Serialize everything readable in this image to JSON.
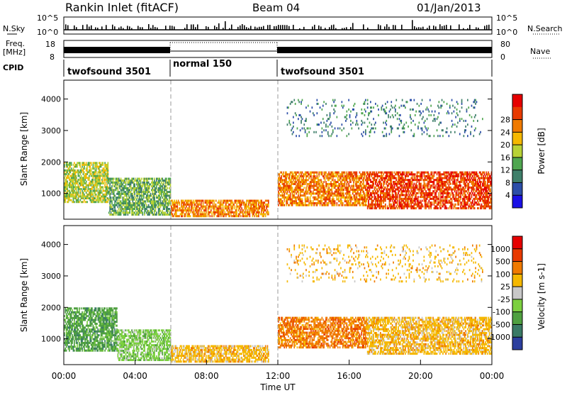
{
  "header": {
    "station": "Rankin Inlet (fitACF)",
    "beam": "Beam 04",
    "date": "01/Jan/2013"
  },
  "summary_panels": {
    "nsky_label": "N.Sky",
    "nsky_ticks": [
      "10^5",
      "10^0"
    ],
    "nsearch_label": "N.Search",
    "nsearch_ticks": [
      "10^5",
      "10^0"
    ],
    "freq_label": "Freq.",
    "freq_unit": "[MHz]",
    "freq_ticks": [
      "18",
      "8"
    ],
    "nave_label": "Nave",
    "nave_ticks": [
      "80",
      "0"
    ],
    "cpid_label": "CPID"
  },
  "chart_data": [
    {
      "type": "timeline",
      "title": "CPID",
      "segments": [
        {
          "name": "twofsound 3501",
          "start": 0,
          "end": 6
        },
        {
          "name": "normal 150",
          "start": 6,
          "end": 12
        },
        {
          "name": "twofsound 3501",
          "start": 12,
          "end": 24
        }
      ]
    },
    {
      "type": "heatmap",
      "quantity": "Power",
      "xlabel": "Time UT",
      "ylabel": "Slant Range [km]",
      "xlim": [
        0,
        24
      ],
      "ylim": [
        180,
        4600
      ],
      "yticks": [
        1000,
        2000,
        3000,
        4000
      ],
      "colorbar": {
        "label": "Power [dB]",
        "ticks": [
          "4",
          "8",
          "12",
          "16",
          "20",
          "24",
          "28"
        ],
        "colors": [
          "#1a10e6",
          "#2c4ea8",
          "#3f7f6a",
          "#4fa64f",
          "#b8d236",
          "#f5b800",
          "#f07a00",
          "#e83a00",
          "#e60000"
        ]
      },
      "patches": [
        {
          "t0": 0.0,
          "t1": 2.5,
          "r0": 700,
          "r1": 2000,
          "value": 16
        },
        {
          "t0": 2.5,
          "t1": 6.0,
          "r0": 300,
          "r1": 1500,
          "value": 12
        },
        {
          "t0": 6.0,
          "t1": 11.5,
          "r0": 250,
          "r1": 800,
          "value": 24
        },
        {
          "t0": 12.0,
          "t1": 17.0,
          "r0": 600,
          "r1": 1700,
          "value": 24
        },
        {
          "t0": 17.0,
          "t1": 24.0,
          "r0": 500,
          "r1": 1700,
          "value": 28
        },
        {
          "t0": 12.5,
          "t1": 23.5,
          "r0": 2800,
          "r1": 4000,
          "value": 8
        }
      ]
    },
    {
      "type": "heatmap",
      "quantity": "Velocity",
      "xlabel": "Time UT",
      "ylabel": "Slant Range [km]",
      "xlim": [
        0,
        24
      ],
      "ylim": [
        180,
        4600
      ],
      "yticks": [
        1000,
        2000,
        3000,
        4000
      ],
      "xticks": [
        "00:00",
        "04:00",
        "08:00",
        "12:00",
        "16:00",
        "20:00",
        "00:00"
      ],
      "colorbar": {
        "label": "Velocity [m s-1]",
        "ticks": [
          "1000",
          "500",
          "100",
          "25",
          "-25",
          "-100",
          "-500",
          "-1000"
        ],
        "colors": [
          "#2c3f9e",
          "#3a7a66",
          "#4fa040",
          "#7cd040",
          "#c8c8c8",
          "#f5b800",
          "#f07a00",
          "#e83a00",
          "#e60000"
        ]
      },
      "patches": [
        {
          "t0": 0.0,
          "t1": 3.0,
          "r0": 600,
          "r1": 2000,
          "value": 100
        },
        {
          "t0": 3.0,
          "t1": 6.0,
          "r0": 300,
          "r1": 1300,
          "value": 25
        },
        {
          "t0": 6.0,
          "t1": 11.5,
          "r0": 250,
          "r1": 800,
          "value": -100
        },
        {
          "t0": 12.0,
          "t1": 17.0,
          "r0": 700,
          "r1": 1700,
          "value": -500
        },
        {
          "t0": 17.0,
          "t1": 24.0,
          "r0": 500,
          "r1": 1700,
          "value": -100
        },
        {
          "t0": 12.5,
          "t1": 23.5,
          "r0": 2800,
          "r1": 4000,
          "value": -100
        }
      ]
    }
  ]
}
